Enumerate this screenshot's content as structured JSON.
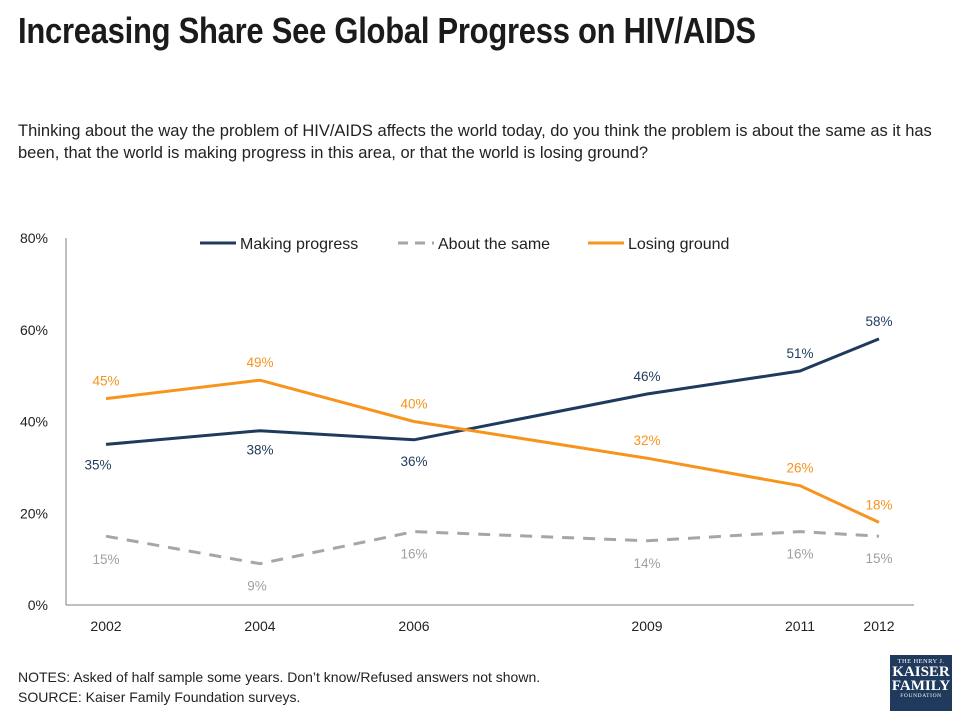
{
  "header": {
    "title": "Increasing Share See Global Progress on HIV/AIDS",
    "question": "Thinking about the way the problem of HIV/AIDS affects the world today, do you think the problem is about the same as it has been, that the world is making progress in this area, or that the world is losing ground?"
  },
  "footer": {
    "notes": "NOTES: Asked of half sample some years. Don’t know/Refused answers not shown.",
    "source": "SOURCE: Kaiser Family Foundation surveys."
  },
  "logo": {
    "line1": "THE HENRY J.",
    "line2": "KAISER",
    "line3": "FAMILY",
    "line4": "FOUNDATION"
  },
  "chart_data": {
    "type": "line",
    "title": "Increasing Share See Global Progress on HIV/AIDS",
    "xlabel": "",
    "ylabel": "",
    "x": [
      2002,
      2004,
      2006,
      2009,
      2011,
      2012
    ],
    "x_tick_labels": [
      "2002",
      "2004",
      "2006",
      "2009",
      "2011",
      "2012"
    ],
    "ylim": [
      0,
      80
    ],
    "y_ticks": [
      0,
      20,
      40,
      60,
      80
    ],
    "y_tick_labels": [
      "0%",
      "20%",
      "40%",
      "60%",
      "80%"
    ],
    "grid": false,
    "legend_position": "top-center",
    "series": [
      {
        "name": "Making progress",
        "values": [
          35,
          38,
          36,
          46,
          51,
          58
        ],
        "labels": [
          "35%",
          "38%",
          "36%",
          "46%",
          "51%",
          "58%"
        ],
        "color": "#1f3a5c",
        "dashed": false
      },
      {
        "name": "About the same",
        "values": [
          15,
          9,
          16,
          14,
          16,
          15
        ],
        "labels": [
          "15%",
          "9%",
          "16%",
          "14%",
          "16%",
          "15%"
        ],
        "color": "#a6a6a6",
        "dashed": true
      },
      {
        "name": "Losing ground",
        "values": [
          45,
          49,
          40,
          32,
          26,
          18
        ],
        "labels": [
          "45%",
          "49%",
          "40%",
          "32%",
          "26%",
          "18%"
        ],
        "color": "#f7941d",
        "dashed": false
      }
    ]
  }
}
